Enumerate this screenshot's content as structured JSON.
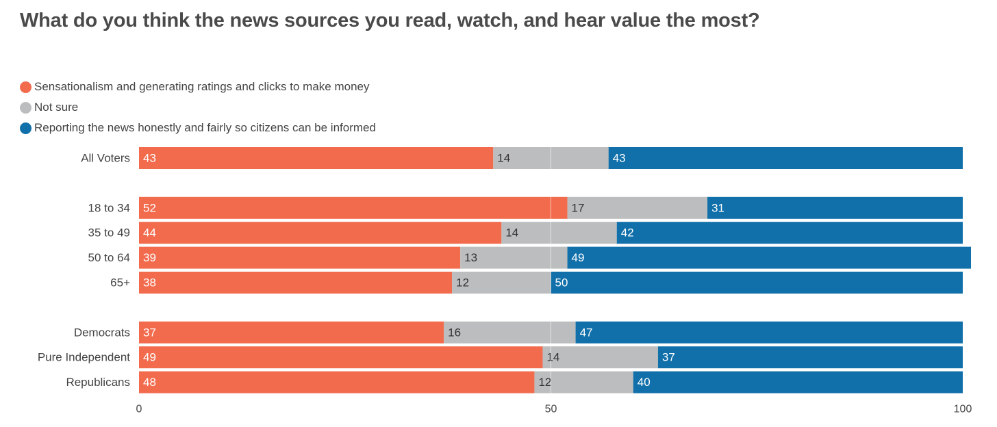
{
  "chart_data": {
    "type": "bar",
    "orientation": "horizontal",
    "stacked": true,
    "title": "What do you think the news sources you read, watch, and hear value the most?",
    "categories": [
      "All Voters",
      "18 to 34",
      "35 to 49",
      "50 to 64",
      "65+",
      "Democrats",
      "Pure Independent",
      "Republicans"
    ],
    "groups": [
      [
        "All Voters"
      ],
      [
        "18 to 34",
        "35 to 49",
        "50 to 64",
        "65+"
      ],
      [
        "Democrats",
        "Pure Independent",
        "Republicans"
      ]
    ],
    "series": [
      {
        "name": "Sensationalism and generating ratings and clicks to make money",
        "color": "#f26b4d",
        "label_color": "#ffffff",
        "values": [
          43,
          52,
          44,
          39,
          38,
          37,
          49,
          48
        ]
      },
      {
        "name": "Not sure",
        "color": "#bcbdbe",
        "label_color": "#333333",
        "values": [
          14,
          17,
          14,
          13,
          12,
          16,
          14,
          12
        ]
      },
      {
        "name": "Reporting the news honestly and fairly so citizens can be informed",
        "color": "#1170aa",
        "label_color": "#ffffff",
        "values": [
          43,
          31,
          42,
          49,
          50,
          47,
          37,
          40
        ]
      }
    ],
    "xlim": [
      0,
      100
    ],
    "xticks": [
      0,
      50,
      100
    ],
    "legend": "top-left",
    "grid": true
  }
}
